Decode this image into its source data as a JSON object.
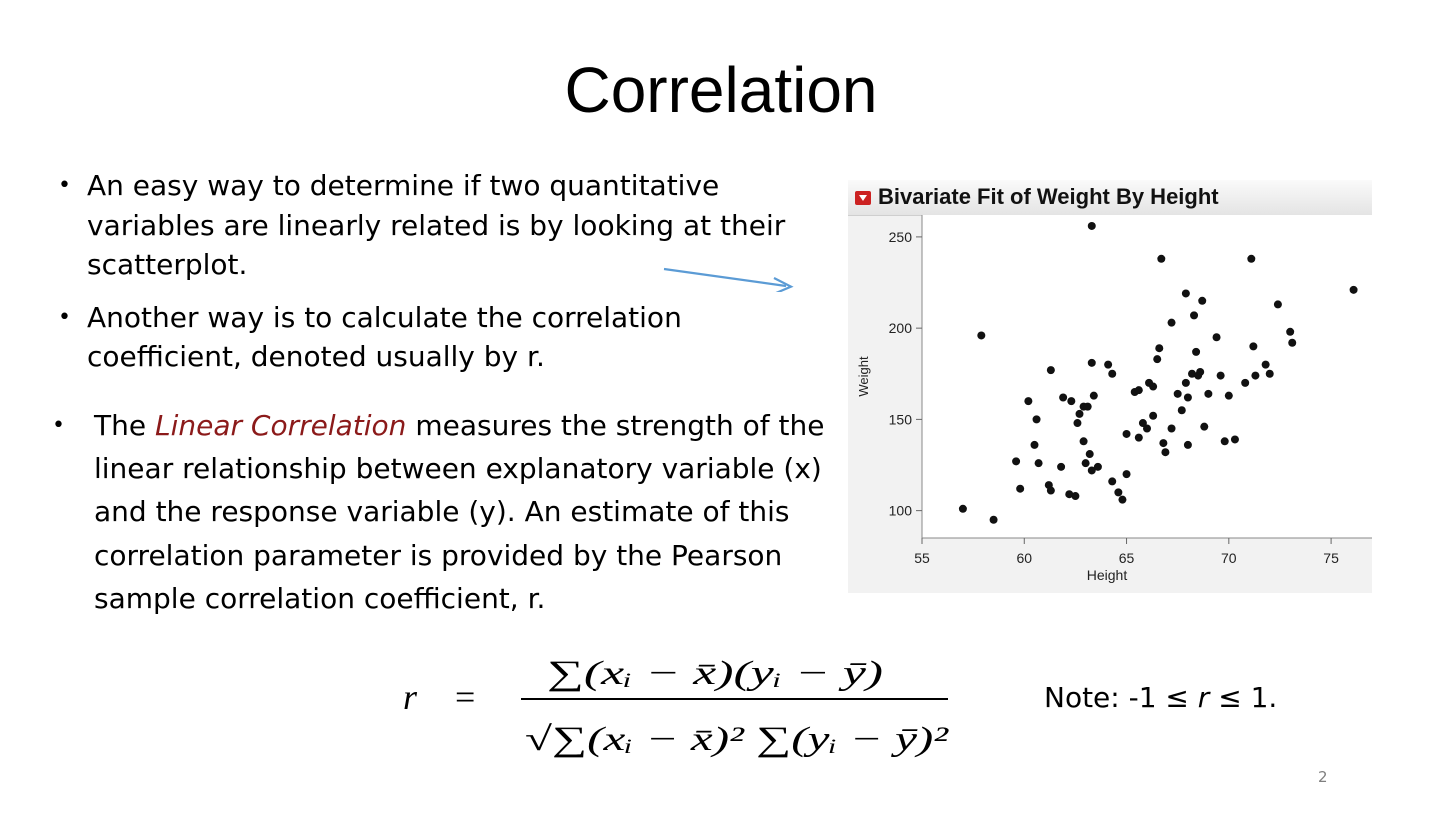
{
  "slide": {
    "title": "Correlation",
    "bullets": [
      "An easy way to determine if two quantitative variables are linearly related is by looking at their scatterplot.",
      "Another way is to calculate the correlation coefficient, denoted usually by r."
    ],
    "bullet3": {
      "prefix": "The ",
      "highlight": "Linear Correlation",
      "suffix": " measures the strength of the linear relationship between explanatory variable (x) and the response variable (y). An estimate of this correlation parameter is provided by the Pearson sample correlation coefficient, r."
    },
    "note": {
      "prefix": "Note: -1 ≤ ",
      "var": "r",
      "suffix": " ≤ 1."
    },
    "page_number": "2",
    "formula": {
      "lhs": "r",
      "equals": "=",
      "numerator": "∑(xᵢ − x̄)(yᵢ − ȳ)",
      "denominator": "√∑(xᵢ − x̄)² ∑(yᵢ − ȳ)²"
    },
    "colors": {
      "highlight": "#8b1a1a",
      "arrow": "#5b9bd5",
      "page_number": "#7f7f7f"
    }
  },
  "chart_data": {
    "type": "scatter",
    "title": "Bivariate Fit of Weight By Height",
    "xlabel": "Height",
    "ylabel": "Weight",
    "xlim": [
      55,
      77
    ],
    "ylim": [
      85,
      262
    ],
    "xticks": [
      55,
      60,
      65,
      70,
      75
    ],
    "yticks": [
      100,
      150,
      200,
      250
    ],
    "grid": false,
    "points": [
      [
        57.0,
        101
      ],
      [
        57.9,
        196
      ],
      [
        58.5,
        95
      ],
      [
        59.6,
        127
      ],
      [
        59.8,
        112
      ],
      [
        60.2,
        160
      ],
      [
        60.5,
        136
      ],
      [
        60.6,
        150
      ],
      [
        60.7,
        126
      ],
      [
        61.2,
        114
      ],
      [
        61.3,
        111
      ],
      [
        61.3,
        177
      ],
      [
        61.8,
        124
      ],
      [
        61.9,
        162
      ],
      [
        62.2,
        109
      ],
      [
        62.3,
        160
      ],
      [
        62.5,
        108
      ],
      [
        62.6,
        148
      ],
      [
        62.7,
        153
      ],
      [
        62.9,
        138
      ],
      [
        62.9,
        157
      ],
      [
        63.1,
        157
      ],
      [
        63.0,
        126
      ],
      [
        63.2,
        131
      ],
      [
        63.3,
        256
      ],
      [
        63.3,
        181
      ],
      [
        63.3,
        122
      ],
      [
        63.4,
        163
      ],
      [
        63.6,
        124
      ],
      [
        64.1,
        180
      ],
      [
        64.3,
        175
      ],
      [
        64.3,
        116
      ],
      [
        64.6,
        110
      ],
      [
        64.8,
        106
      ],
      [
        65.0,
        142
      ],
      [
        65.0,
        120
      ],
      [
        65.4,
        165
      ],
      [
        65.6,
        140
      ],
      [
        65.6,
        166
      ],
      [
        65.8,
        148
      ],
      [
        66.0,
        145
      ],
      [
        66.1,
        170
      ],
      [
        66.3,
        152
      ],
      [
        66.3,
        168
      ],
      [
        66.5,
        183
      ],
      [
        66.6,
        189
      ],
      [
        66.7,
        238
      ],
      [
        66.8,
        137
      ],
      [
        66.9,
        132
      ],
      [
        67.2,
        203
      ],
      [
        67.5,
        164
      ],
      [
        67.7,
        155
      ],
      [
        67.9,
        219
      ],
      [
        67.9,
        170
      ],
      [
        68.0,
        136
      ],
      [
        68.2,
        175
      ],
      [
        68.3,
        207
      ],
      [
        68.4,
        187
      ],
      [
        68.5,
        174
      ],
      [
        68.6,
        176
      ],
      [
        68.7,
        215
      ],
      [
        68.8,
        146
      ],
      [
        69.0,
        164
      ],
      [
        69.4,
        195
      ],
      [
        69.6,
        174
      ],
      [
        69.8,
        138
      ],
      [
        70.0,
        163
      ],
      [
        70.3,
        139
      ],
      [
        70.8,
        170
      ],
      [
        71.1,
        238
      ],
      [
        71.2,
        190
      ],
      [
        71.3,
        174
      ],
      [
        71.8,
        180
      ],
      [
        72.0,
        175
      ],
      [
        72.4,
        213
      ],
      [
        73.0,
        198
      ],
      [
        73.1,
        192
      ],
      [
        76.1,
        221
      ],
      [
        68.0,
        162
      ],
      [
        67.2,
        145
      ]
    ]
  }
}
